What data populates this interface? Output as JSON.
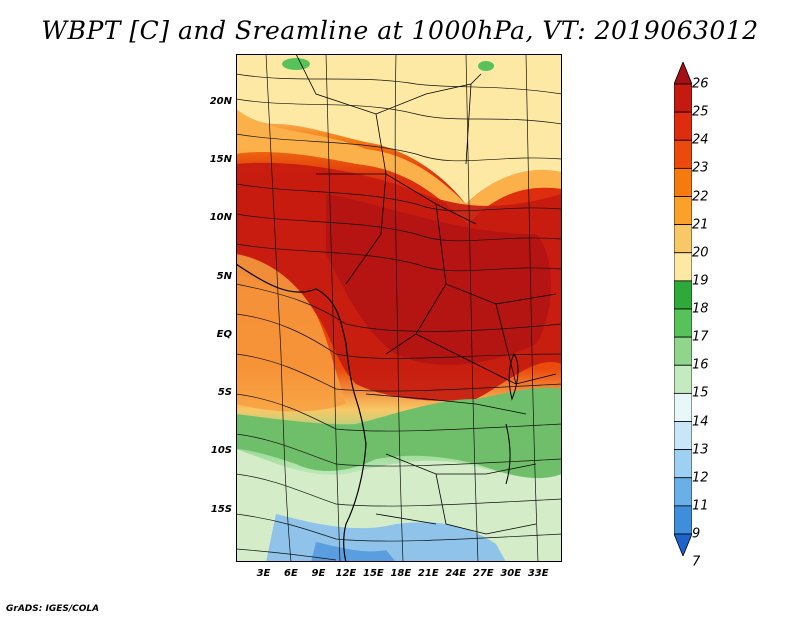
{
  "title": "WBPT [C] and Sreamline at 1000hPa, VT: 2019063012",
  "credit": "GrADS: IGES/COLA",
  "y_axis": {
    "ticks": [
      {
        "label": "20N",
        "lat": 20
      },
      {
        "label": "15N",
        "lat": 15
      },
      {
        "label": "10N",
        "lat": 10
      },
      {
        "label": "5N",
        "lat": 5
      },
      {
        "label": "EQ",
        "lat": 0
      },
      {
        "label": "5S",
        "lat": -5
      },
      {
        "label": "10S",
        "lat": -10
      },
      {
        "label": "15S",
        "lat": -15
      }
    ]
  },
  "x_axis": {
    "ticks": [
      {
        "label": "3E",
        "lon": 3
      },
      {
        "label": "6E",
        "lon": 6
      },
      {
        "label": "9E",
        "lon": 9
      },
      {
        "label": "12E",
        "lon": 12
      },
      {
        "label": "15E",
        "lon": 15
      },
      {
        "label": "18E",
        "lon": 18
      },
      {
        "label": "21E",
        "lon": 21
      },
      {
        "label": "24E",
        "lon": 24
      },
      {
        "label": "27E",
        "lon": 27
      },
      {
        "label": "30E",
        "lon": 30
      },
      {
        "label": "33E",
        "lon": 33
      }
    ]
  },
  "colorbar": {
    "labels": [
      "26",
      "25",
      "24",
      "23",
      "22",
      "21",
      "20",
      "19",
      "18",
      "17",
      "16",
      "15",
      "14",
      "13",
      "12",
      "11",
      "9",
      "7"
    ],
    "colors": [
      "#a50f15",
      "#c41a10",
      "#dd2c0e",
      "#ec4a0c",
      "#f57a10",
      "#fba129",
      "#f8c867",
      "#fde9a4",
      "#2eaa3a",
      "#57c25a",
      "#8fd58b",
      "#c4ebc0",
      "#e8f7f7",
      "#c8e6f7",
      "#9ed0f2",
      "#6ab0e8",
      "#3e8edc",
      "#1d63cc"
    ]
  }
}
